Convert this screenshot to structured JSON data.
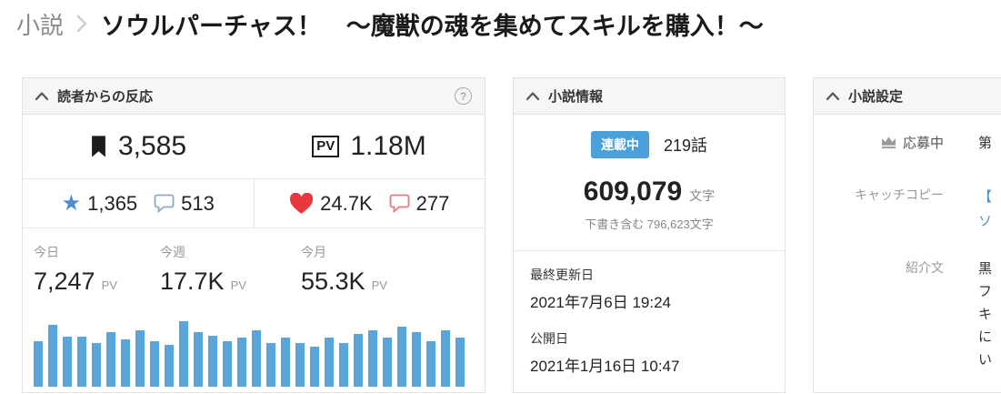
{
  "breadcrumb": {
    "section": "小説",
    "title": "ソウルパーチャス！　～魔獣の魂を集めてスキルを購入！～"
  },
  "reactions": {
    "title": "読者からの反応",
    "help_label": "?",
    "bookmarks": "3,585",
    "pv_badge": "PV",
    "pv_total": "1.18M",
    "star_prefix": "★",
    "stars": "1,365",
    "star_comments": "513",
    "hearts": "24.7K",
    "heart_comments": "277",
    "periods": [
      {
        "label": "今日",
        "value": "7,247",
        "unit": "PV"
      },
      {
        "label": "今週",
        "value": "17.7K",
        "unit": "PV"
      },
      {
        "label": "今月",
        "value": "55.3K",
        "unit": "PV"
      }
    ]
  },
  "chart_data": {
    "type": "bar",
    "title": "",
    "xlabel": "",
    "ylabel": "",
    "legend": false,
    "note": "unlabeled daily PV sparkline, ~30 days, relative heights 0-100",
    "values": [
      69,
      94,
      76,
      76,
      67,
      83,
      72,
      86,
      69,
      64,
      100,
      83,
      78,
      69,
      75,
      86,
      67,
      75,
      67,
      61,
      75,
      67,
      81,
      86,
      75,
      92,
      83,
      69,
      86,
      75
    ]
  },
  "novel_info": {
    "title": "小説情報",
    "status_badge": "連載中",
    "episodes": "219話",
    "char_count": "609,079",
    "char_unit": "文字",
    "draft_note": "下書き含む 796,623文字",
    "last_updated_label": "最終更新日",
    "last_updated": "2021年7月6日 19:24",
    "published_label": "公開日",
    "published": "2021年1月16日 10:47"
  },
  "novel_settings": {
    "title": "小説設定",
    "entry_label": "応募中",
    "entry_value": "第",
    "catch_copy_label": "キャッチコピー",
    "catch_copy_lines": [
      "【",
      "ソ"
    ],
    "synopsis_label": "紹介文",
    "synopsis_lines": [
      "黒",
      "フ",
      "キ",
      "に",
      "い"
    ]
  },
  "colors": {
    "accent_blue": "#4aa0d8",
    "bar_blue": "#58a6dd",
    "star_blue": "#4a8fd3",
    "catch_copy_blue": "#4a8fd3",
    "heart_red": "#e8383d",
    "comment_red": "#e87a80",
    "comment_blue_gray": "#93aac4",
    "header_bg": "#f6f6f6",
    "border": "#e2e2e2"
  }
}
